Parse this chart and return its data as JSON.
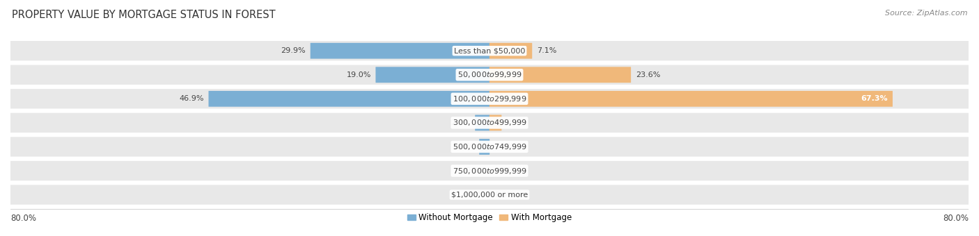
{
  "title": "PROPERTY VALUE BY MORTGAGE STATUS IN FOREST",
  "source": "Source: ZipAtlas.com",
  "categories": [
    "Less than $50,000",
    "$50,000 to $99,999",
    "$100,000 to $299,999",
    "$300,000 to $499,999",
    "$500,000 to $749,999",
    "$750,000 to $999,999",
    "$1,000,000 or more"
  ],
  "without_mortgage": [
    29.9,
    19.0,
    46.9,
    2.4,
    1.7,
    0.0,
    0.0
  ],
  "with_mortgage": [
    7.1,
    23.6,
    67.3,
    2.0,
    0.0,
    0.0,
    0.0
  ],
  "color_without": "#7BAFD4",
  "color_with": "#F0B87A",
  "x_left_label": "80.0%",
  "x_right_label": "80.0%",
  "xlim": 80.0,
  "bg_bar": "#E8E8E8",
  "bg_fig": "#FFFFFF",
  "title_fontsize": 10.5,
  "source_fontsize": 8,
  "bar_label_fontsize": 8,
  "category_fontsize": 8,
  "legend_fontsize": 8.5,
  "axis_label_fontsize": 8.5
}
